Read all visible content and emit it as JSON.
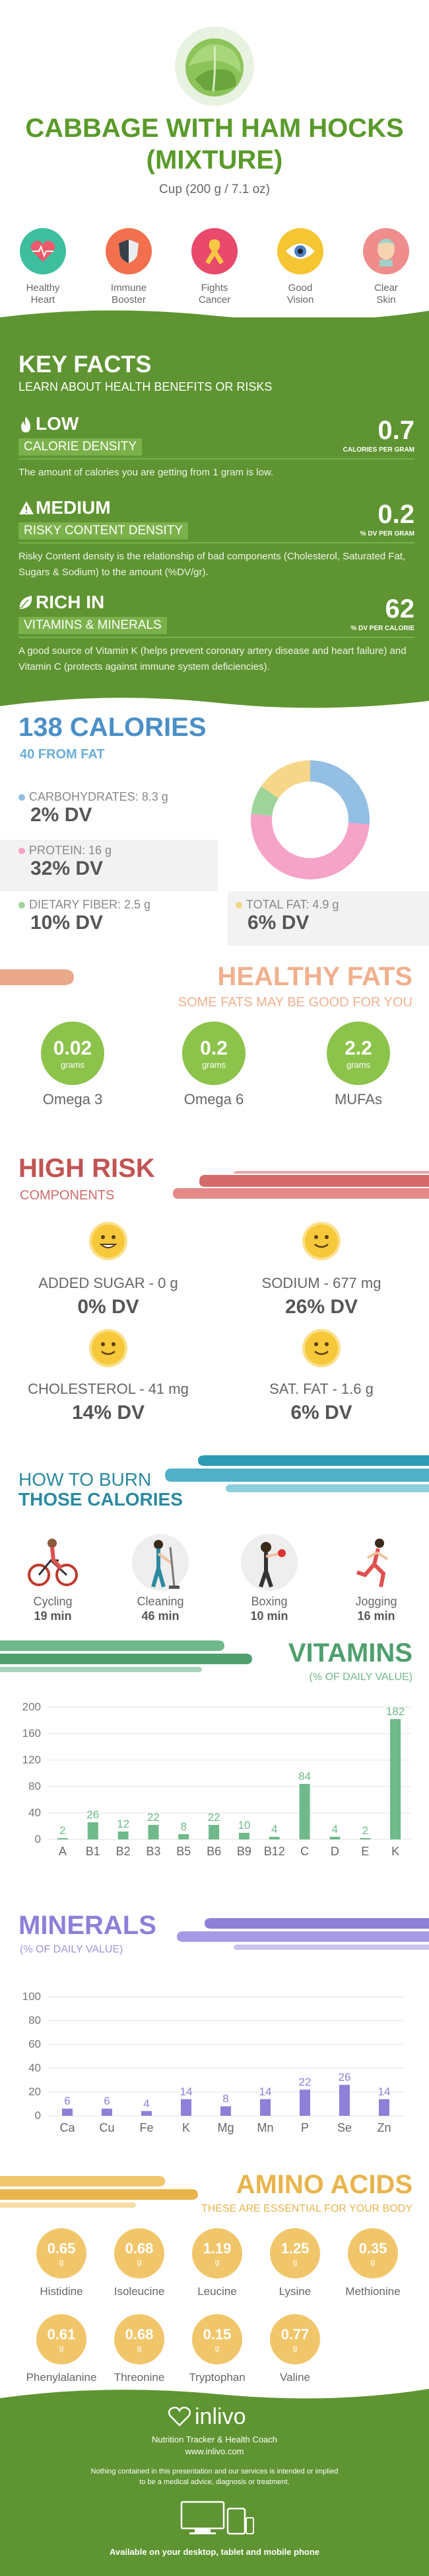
{
  "header": {
    "title_line1": "CABBAGE WITH HAM HOCKS",
    "title_line2": "(MIXTURE)",
    "serving": "Cup (200 g / 7.1 oz)"
  },
  "benefits": [
    {
      "label1": "Healthy",
      "label2": "Heart",
      "icon": "heart-icon",
      "color": "#3dbf9e"
    },
    {
      "label1": "Immune",
      "label2": "Booster",
      "icon": "shield-icon",
      "color": "#f2704e"
    },
    {
      "label1": "Fights",
      "label2": "Cancer",
      "icon": "ribbon-icon",
      "color": "#e9496a"
    },
    {
      "label1": "Good",
      "label2": "Vision",
      "icon": "eye-icon",
      "color": "#f5c532"
    },
    {
      "label1": "Clear",
      "label2": "Skin",
      "icon": "face-icon",
      "color": "#ef8d8d"
    }
  ],
  "key_facts": {
    "title": "KEY FACTS",
    "subtitle": "LEARN ABOUT HEALTH BENEFITS OR RISKS",
    "facts": [
      {
        "level": "LOW",
        "label": "CALORIE DENSITY",
        "value": "0.7",
        "unit": "CALORIES PER GRAM",
        "desc": "The amount of calories you are getting from 1 gram is low."
      },
      {
        "level": "MEDIUM",
        "label": "RISKY CONTENT DENSITY",
        "value": "0.2",
        "unit": "% DV PER GRAM",
        "desc": "Risky Content density is the relationship of bad components (Cholesterol, Saturated Fat, Sugars & Sodium) to the amount (%DV/gr)."
      },
      {
        "level": "RICH  IN",
        "label": "VITAMINS & MINERALS",
        "value": "62",
        "unit": "% DV PER CALORIE",
        "desc": "A good source of Vitamin K (helps prevent coronary artery disease and heart failure) and Vitamin C (protects against immune system deficiencies)."
      }
    ]
  },
  "calories": {
    "title": "138 CALORIES",
    "subtitle": "40 FROM FAT",
    "carbs_label": "CARBOHYDRATES: 8.3 g",
    "carbs_dv": "2% DV",
    "protein_label": "PROTEIN: 16 g",
    "protein_dv": "32% DV",
    "fiber_label": "DIETARY FIBER: 2.5 g",
    "fiber_dv": "10% DV",
    "fat_label": "TOTAL FAT: 4.9 g",
    "fat_dv": "6% DV",
    "donut": [
      {
        "name": "carbs",
        "value": 8.3,
        "color": "#92bfe3"
      },
      {
        "name": "protein",
        "value": 16,
        "color": "#f5a3c6"
      },
      {
        "name": "fiber",
        "value": 2.5,
        "color": "#9ed39a"
      },
      {
        "name": "fat",
        "value": 4.9,
        "color": "#f6d688"
      }
    ]
  },
  "fats": {
    "title": "HEALTHY FATS",
    "subtitle": "SOME FATS MAY BE GOOD FOR YOU",
    "items": [
      {
        "value": "0.02",
        "unit": "grams",
        "name": "Omega 3"
      },
      {
        "value": "0.2",
        "unit": "grams",
        "name": "Omega 6"
      },
      {
        "value": "2.2",
        "unit": "grams",
        "name": "MUFAs"
      }
    ]
  },
  "risk": {
    "title": "HIGH RISK",
    "subtitle": "COMPONENTS",
    "items": [
      {
        "label": "ADDED SUGAR - 0 g",
        "dv": "0% DV"
      },
      {
        "label": "SODIUM - 677 mg",
        "dv": "26% DV"
      },
      {
        "label": "CHOLESTEROL - 41 mg",
        "dv": "14% DV"
      },
      {
        "label": "SAT. FAT - 1.6 g",
        "dv": "6% DV"
      }
    ]
  },
  "burn": {
    "title1": "HOW TO BURN",
    "title2": "THOSE CALORIES",
    "items": [
      {
        "name": "Cycling",
        "time": "19 min",
        "icon": "cycling-icon"
      },
      {
        "name": "Cleaning",
        "time": "46 min",
        "icon": "cleaning-icon"
      },
      {
        "name": "Boxing",
        "time": "10 min",
        "icon": "boxing-icon"
      },
      {
        "name": "Jogging",
        "time": "16 min",
        "icon": "jogging-icon"
      }
    ]
  },
  "vitamins": {
    "title": "VITAMINS",
    "subtitle": "(% OF DAILY VALUE)",
    "chart_data": {
      "type": "bar",
      "categories": [
        "A",
        "B1",
        "B2",
        "B3",
        "B5",
        "B6",
        "B9",
        "B12",
        "C",
        "D",
        "E",
        "K"
      ],
      "values": [
        2,
        26,
        12,
        22,
        8,
        22,
        10,
        4,
        84,
        4,
        2,
        182
      ],
      "ylim": [
        0,
        200
      ],
      "yticks": [
        0,
        40,
        80,
        120,
        160,
        200
      ],
      "color": "#6fb98a"
    }
  },
  "minerals": {
    "title": "MINERALS",
    "subtitle": "(% OF DAILY VALUE)",
    "chart_data": {
      "type": "bar",
      "categories": [
        "Ca",
        "Cu",
        "Fe",
        "K",
        "Mg",
        "Mn",
        "P",
        "Se",
        "Zn"
      ],
      "values": [
        6,
        6,
        4,
        14,
        8,
        14,
        22,
        26,
        14
      ],
      "ylim": [
        0,
        100
      ],
      "yticks": [
        0,
        20,
        40,
        60,
        80,
        100
      ],
      "color": "#8e7fd8"
    }
  },
  "amino": {
    "title": "AMINO ACIDS",
    "subtitle": "THESE ARE ESSENTIAL FOR YOUR BODY",
    "items": [
      {
        "value": "0.65",
        "unit": "g",
        "name": "Histidine"
      },
      {
        "value": "0.68",
        "unit": "g",
        "name": "Isoleucine"
      },
      {
        "value": "1.19",
        "unit": "g",
        "name": "Leucine"
      },
      {
        "value": "1.25",
        "unit": "g",
        "name": "Lysine"
      },
      {
        "value": "0.35",
        "unit": "g",
        "name": "Methionine"
      },
      {
        "value": "0.61",
        "unit": "g",
        "name": "Phenylalanine"
      },
      {
        "value": "0.68",
        "unit": "g",
        "name": "Threonine"
      },
      {
        "value": "0.15",
        "unit": "g",
        "name": "Tryptophan"
      },
      {
        "value": "0.77",
        "unit": "g",
        "name": "Valine"
      }
    ]
  },
  "footer": {
    "brand": "inlivo",
    "tagline": "Nutrition Tracker & Health Coach",
    "url": "www.inlivo.com",
    "disclaimer1": "Nothing contained in this presentation and our services is intended or implied",
    "disclaimer2": "to be a medical advice, diagnosis or treatment.",
    "available": "Available on your desktop, tablet and mobile phone"
  }
}
